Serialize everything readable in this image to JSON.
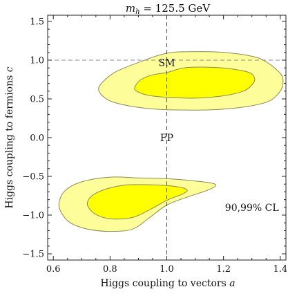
{
  "chart_data": {
    "type": "contour",
    "title_italic": "m",
    "title_sub": "h",
    "title_rest": " = 125.5 GeV",
    "xlabel_text": "Higgs coupling to vectors ",
    "xlabel_var": "a",
    "ylabel_text": "Higgs coupling to fermions ",
    "ylabel_var": "c",
    "xlim": [
      0.58,
      1.42
    ],
    "ylim": [
      -1.58,
      1.58
    ],
    "xticks": [
      0.6,
      0.8,
      1.0,
      1.2,
      1.4
    ],
    "xtick_labels": [
      "0.6",
      "0.8",
      "1.0",
      "1.2",
      "1.4"
    ],
    "yticks": [
      -1.5,
      -1.0,
      -0.5,
      0.0,
      0.5,
      1.0,
      1.5
    ],
    "ytick_labels": [
      "−1.5",
      "−1.0",
      "−0.5",
      "0.0",
      "0.5",
      "1.0",
      "1.5"
    ],
    "reference_lines": {
      "x": 1.0,
      "y": 1.0
    },
    "annotations": [
      {
        "text": "SM",
        "x": 1.0,
        "y": 0.97
      },
      {
        "text": "FP",
        "x": 1.0,
        "y": 0.0
      },
      {
        "text": "90,99% CL",
        "x": 1.3,
        "y": -0.9
      }
    ],
    "series": [
      {
        "region": "positive-c",
        "level_99": [
          [
            1.0,
            1.09
          ],
          [
            1.1,
            1.11
          ],
          [
            1.2,
            1.1
          ],
          [
            1.3,
            1.05
          ],
          [
            1.35,
            0.98
          ],
          [
            1.4,
            0.83
          ],
          [
            1.41,
            0.72
          ],
          [
            1.4,
            0.6
          ],
          [
            1.36,
            0.47
          ],
          [
            1.28,
            0.4
          ],
          [
            1.16,
            0.36
          ],
          [
            1.0,
            0.36
          ],
          [
            0.9,
            0.39
          ],
          [
            0.81,
            0.46
          ],
          [
            0.77,
            0.55
          ],
          [
            0.76,
            0.64
          ],
          [
            0.78,
            0.74
          ],
          [
            0.82,
            0.85
          ],
          [
            0.9,
            0.97
          ]
        ],
        "level_90": [
          [
            1.0,
            0.84
          ],
          [
            1.06,
            0.9
          ],
          [
            1.14,
            0.91
          ],
          [
            1.22,
            0.89
          ],
          [
            1.29,
            0.84
          ],
          [
            1.31,
            0.76
          ],
          [
            1.3,
            0.68
          ],
          [
            1.27,
            0.6
          ],
          [
            1.2,
            0.54
          ],
          [
            1.1,
            0.51
          ],
          [
            1.0,
            0.52
          ],
          [
            0.93,
            0.55
          ],
          [
            0.89,
            0.61
          ],
          [
            0.89,
            0.67
          ],
          [
            0.91,
            0.75
          ],
          [
            0.95,
            0.81
          ]
        ]
      },
      {
        "region": "negative-c",
        "level_99": [
          [
            0.8,
            -0.51
          ],
          [
            0.9,
            -0.52
          ],
          [
            1.0,
            -0.53
          ],
          [
            1.1,
            -0.56
          ],
          [
            1.17,
            -0.6
          ],
          [
            1.15,
            -0.67
          ],
          [
            1.07,
            -0.77
          ],
          [
            1.0,
            -0.87
          ],
          [
            0.94,
            -1.03
          ],
          [
            0.88,
            -1.18
          ],
          [
            0.8,
            -1.21
          ],
          [
            0.72,
            -1.18
          ],
          [
            0.66,
            -1.1
          ],
          [
            0.63,
            -0.98
          ],
          [
            0.62,
            -0.85
          ],
          [
            0.64,
            -0.69
          ],
          [
            0.7,
            -0.57
          ]
        ],
        "level_90": [
          [
            0.86,
            -0.61
          ],
          [
            0.95,
            -0.61
          ],
          [
            1.03,
            -0.63
          ],
          [
            1.07,
            -0.67
          ],
          [
            1.06,
            -0.72
          ],
          [
            1.0,
            -0.81
          ],
          [
            0.94,
            -0.93
          ],
          [
            0.88,
            -1.03
          ],
          [
            0.81,
            -1.05
          ],
          [
            0.76,
            -1.01
          ],
          [
            0.73,
            -0.93
          ],
          [
            0.72,
            -0.84
          ],
          [
            0.74,
            -0.74
          ],
          [
            0.79,
            -0.66
          ]
        ]
      }
    ],
    "colors": {
      "level_99_fill": "#fdfd9a",
      "level_90_fill": "#ffff00",
      "contour_stroke": "#8a8a55",
      "frame": "#222222",
      "refline_v": "#444444",
      "refline_h": "#8a8a8a",
      "background": "#ffffff"
    }
  }
}
